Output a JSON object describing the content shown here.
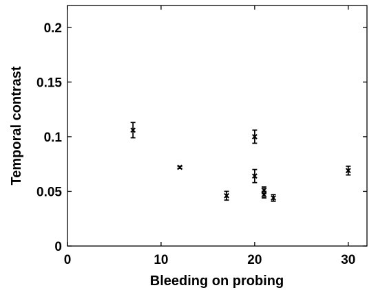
{
  "chart_data": {
    "type": "scatter",
    "title": "",
    "xlabel": "Bleeding on probing",
    "ylabel": "Temporal contrast",
    "xlim": [
      0,
      32
    ],
    "ylim": [
      0,
      0.22
    ],
    "x_ticks": [
      0,
      10,
      20,
      30
    ],
    "y_ticks": [
      0,
      0.05,
      0.1,
      0.15,
      0.2
    ],
    "x_tick_labels": [
      "0",
      "10",
      "20",
      "30"
    ],
    "y_tick_labels": [
      "0",
      "0.05",
      "0.1",
      "0.15",
      "0.2"
    ],
    "grid": false,
    "legend": "none",
    "marker": "x",
    "colors": {
      "marker": "#000000",
      "axis": "#000000",
      "background": "#ffffff"
    },
    "points": [
      {
        "x": 7,
        "y": 0.106,
        "err": 0.007
      },
      {
        "x": 12,
        "y": 0.072,
        "err": 0.001
      },
      {
        "x": 17,
        "y": 0.046,
        "err": 0.004
      },
      {
        "x": 20,
        "y": 0.1,
        "err": 0.006
      },
      {
        "x": 20,
        "y": 0.064,
        "err": 0.006
      },
      {
        "x": 21,
        "y": 0.051,
        "err": 0.003
      },
      {
        "x": 21,
        "y": 0.047,
        "err": 0.003
      },
      {
        "x": 22,
        "y": 0.044,
        "err": 0.003
      },
      {
        "x": 30,
        "y": 0.069,
        "err": 0.004
      }
    ]
  }
}
